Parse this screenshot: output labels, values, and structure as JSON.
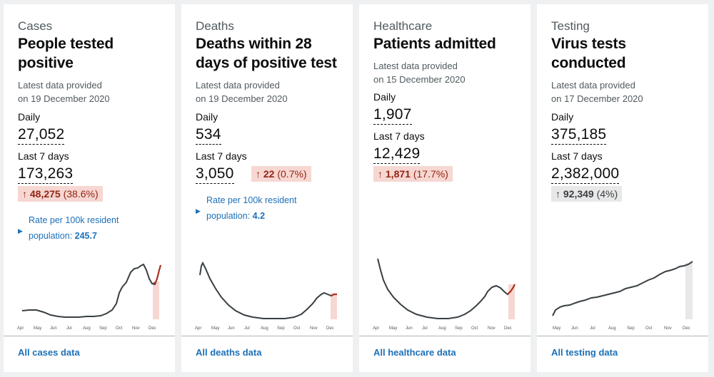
{
  "cards": [
    {
      "category": "Cases",
      "title_line1": "People tested",
      "title_line2": "positive",
      "meta_line1": "Latest data provided",
      "meta_line2": "on 19 December 2020",
      "daily_label": "Daily",
      "daily_value": "27,052",
      "week_label": "Last 7 days",
      "week_value": "173,263",
      "change_arrow": "↑",
      "change_value": "48,275",
      "change_pct": "(38.6%)",
      "rate_line1": "Rate per 100k resident",
      "rate_line2": "population:",
      "rate_value": "245.7",
      "months": [
        "Apr",
        "May",
        "Jun",
        "Jul",
        "Aug",
        "Sep",
        "Oct",
        "Nov",
        "Dec"
      ],
      "link": "All cases data"
    },
    {
      "category": "Deaths",
      "title_line1": "Deaths within 28",
      "title_line2": "days of positive test",
      "meta_line1": "Latest data provided",
      "meta_line2": "on 19 December 2020",
      "daily_label": "Daily",
      "daily_value": "534",
      "week_label": "Last 7 days",
      "week_value": "3,050",
      "change_arrow": "↑",
      "change_value": "22",
      "change_pct": "(0.7%)",
      "rate_line1": "Rate per 100k resident",
      "rate_line2": "population:",
      "rate_value": "4.2",
      "months": [
        "Apr",
        "May",
        "Jun",
        "Jul",
        "Aug",
        "Sep",
        "Oct",
        "Nov",
        "Dec"
      ],
      "link": "All deaths data"
    },
    {
      "category": "Healthcare",
      "title_line1": "Patients admitted",
      "meta_line1": "Latest data provided",
      "meta_line2": "on 15 December 2020",
      "daily_label": "Daily",
      "daily_value": "1,907",
      "week_label": "Last 7 days",
      "week_value": "12,429",
      "change_arrow": "↑",
      "change_value": "1,871",
      "change_pct": "(17.7%)",
      "months": [
        "Apr",
        "May",
        "Jun",
        "Jul",
        "Aug",
        "Sep",
        "Oct",
        "Nov",
        "Dec"
      ],
      "link": "All healthcare data"
    },
    {
      "category": "Testing",
      "title_line1": "Virus tests",
      "title_line2": "conducted",
      "meta_line1": "Latest data provided",
      "meta_line2": "on 17 December 2020",
      "daily_label": "Daily",
      "daily_value": "375,185",
      "week_label": "Last 7 days",
      "week_value": "2,382,000",
      "change_arrow": "↑",
      "change_value": "92,349",
      "change_pct": "(4%)",
      "months": [
        "May",
        "Jun",
        "Jul",
        "Aug",
        "Sep",
        "Oct",
        "Nov",
        "Dec"
      ],
      "link": "All testing data"
    }
  ],
  "colors": {
    "link": "#1d70b8",
    "up_bad_bg": "#f6d7d2",
    "up_bad_fg": "#942514",
    "neutral_bg": "#e8e8e8",
    "line": "#383f43",
    "recent_line": "#b52d1c"
  }
}
